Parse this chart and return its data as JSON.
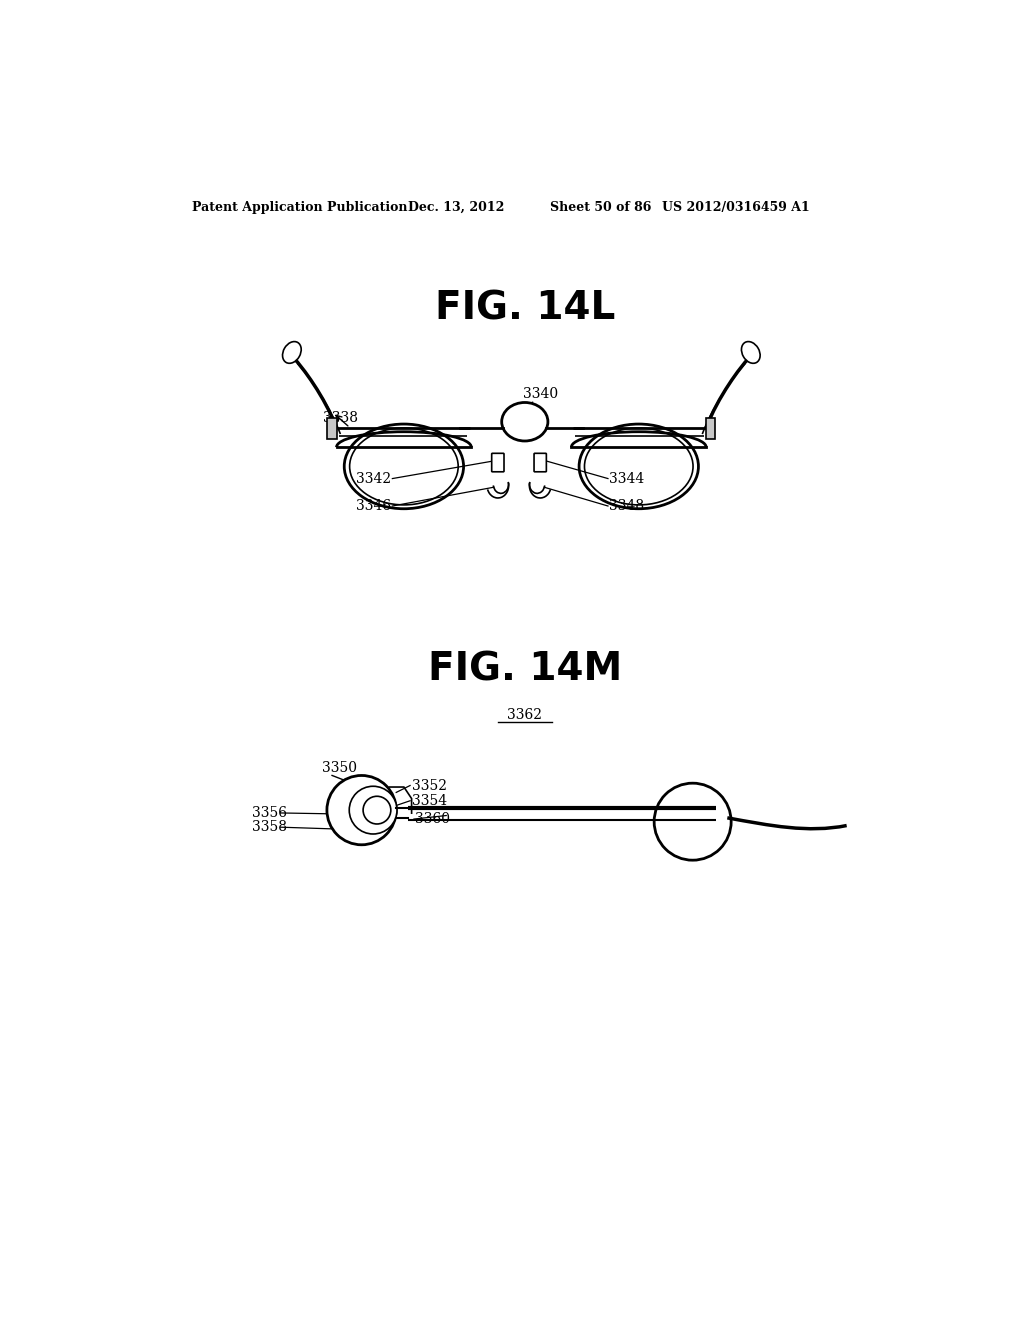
{
  "bg_color": "#ffffff",
  "header_text": "Patent Application Publication",
  "header_date": "Dec. 13, 2012",
  "header_sheet": "Sheet 50 of 86",
  "header_patent": "US 2012/0316459 A1",
  "fig_top_label": "FIG. 14L",
  "fig_bottom_label": "FIG. 14M",
  "label_fontsize": 10,
  "header_fontsize": 9,
  "fig_label_fontsize": 28
}
